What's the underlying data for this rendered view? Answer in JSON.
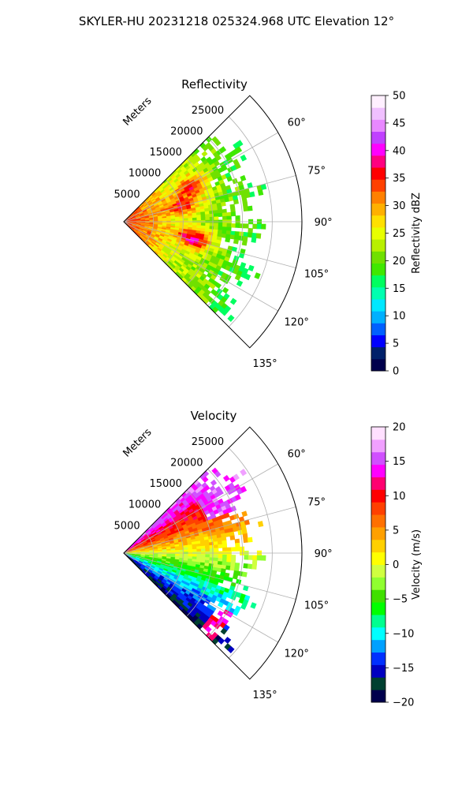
{
  "figure": {
    "title": "SKYLER-HU  20231218  025324.968 UTC Elevation 12°"
  },
  "chart_data": [
    {
      "type": "heatmap",
      "title": "Reflectivity",
      "projection": "polar-sector",
      "radial_label": "Meters",
      "radial_ticks": [
        5000,
        10000,
        15000,
        20000,
        25000
      ],
      "radial_ticklabels": [
        "5000",
        "10000",
        "15000",
        "20000",
        "25000"
      ],
      "rlim": [
        0,
        30000
      ],
      "azimuth_range": [
        45,
        135
      ],
      "azimuth_ticks": [
        60,
        75,
        90,
        105,
        120,
        135
      ],
      "azimuth_ticklabels": [
        "60°",
        "75°",
        "90°",
        "105°",
        "120°",
        "135°"
      ],
      "grid": true,
      "colorbar": {
        "label": "Reflectivity dBZ",
        "range": [
          0,
          50
        ],
        "ticks": [
          0,
          5,
          10,
          15,
          20,
          25,
          30,
          35,
          40,
          45,
          50
        ],
        "ticklabels": [
          "0",
          "5",
          "10",
          "15",
          "20",
          "25",
          "30",
          "35",
          "40",
          "45",
          "50"
        ]
      },
      "field_summary": {
        "near_range_dbz": 35,
        "mid_range_dbz": 25,
        "far_range_dbz": 18,
        "max_echo_range_m": 22000,
        "cores": [
          {
            "azimuth": 63,
            "range_m": 12500,
            "dbz": 36
          },
          {
            "azimuth": 75,
            "range_m": 10000,
            "dbz": 36
          },
          {
            "azimuth": 104,
            "range_m": 12000,
            "dbz": 40
          }
        ]
      }
    },
    {
      "type": "heatmap",
      "title": "Velocity",
      "projection": "polar-sector",
      "radial_label": "Meters",
      "radial_ticks": [
        5000,
        10000,
        15000,
        20000,
        25000
      ],
      "radial_ticklabels": [
        "5000",
        "10000",
        "15000",
        "20000",
        "25000"
      ],
      "rlim": [
        0,
        30000
      ],
      "azimuth_range": [
        45,
        135
      ],
      "azimuth_ticks": [
        60,
        75,
        90,
        105,
        120,
        135
      ],
      "azimuth_ticklabels": [
        "60°",
        "75°",
        "90°",
        "105°",
        "120°",
        "135°"
      ],
      "grid": true,
      "colorbar": {
        "label": "Velocity (m/s)",
        "range": [
          -20,
          20
        ],
        "ticks": [
          -20,
          -15,
          -10,
          -5,
          0,
          5,
          10,
          15,
          20
        ],
        "ticklabels": [
          "−20",
          "−15",
          "−10",
          "−5",
          "0",
          "5",
          "10",
          "15",
          "20"
        ]
      },
      "field_summary": {
        "velocity_at_60deg": 11,
        "velocity_at_90deg": 0,
        "velocity_at_120deg": -12,
        "max_echo_range_m": 22000
      }
    }
  ],
  "colormaps": {
    "reflectivity": [
      "#00004c",
      "#00206a",
      "#0000ff",
      "#0060ff",
      "#00b0ff",
      "#00e8ff",
      "#00ffb0",
      "#00ff60",
      "#40e800",
      "#70e000",
      "#b8f000",
      "#e8ff00",
      "#ffe000",
      "#ffb000",
      "#ff8000",
      "#ff4000",
      "#ff0000",
      "#ff0080",
      "#ff00ff",
      "#c040ff",
      "#e888ff",
      "#f0c0ff",
      "#fff0ff"
    ],
    "velocity": [
      "#00004c",
      "#004030",
      "#0000c0",
      "#0030ff",
      "#00a0ff",
      "#00ffff",
      "#00ff90",
      "#00ff00",
      "#40e000",
      "#90ff30",
      "#d0ff40",
      "#ffff00",
      "#ffd000",
      "#ffa000",
      "#ff7000",
      "#ff4000",
      "#ff0000",
      "#ff0070",
      "#ff00ff",
      "#d050ff",
      "#f0a0ff",
      "#ffe0ff"
    ]
  }
}
